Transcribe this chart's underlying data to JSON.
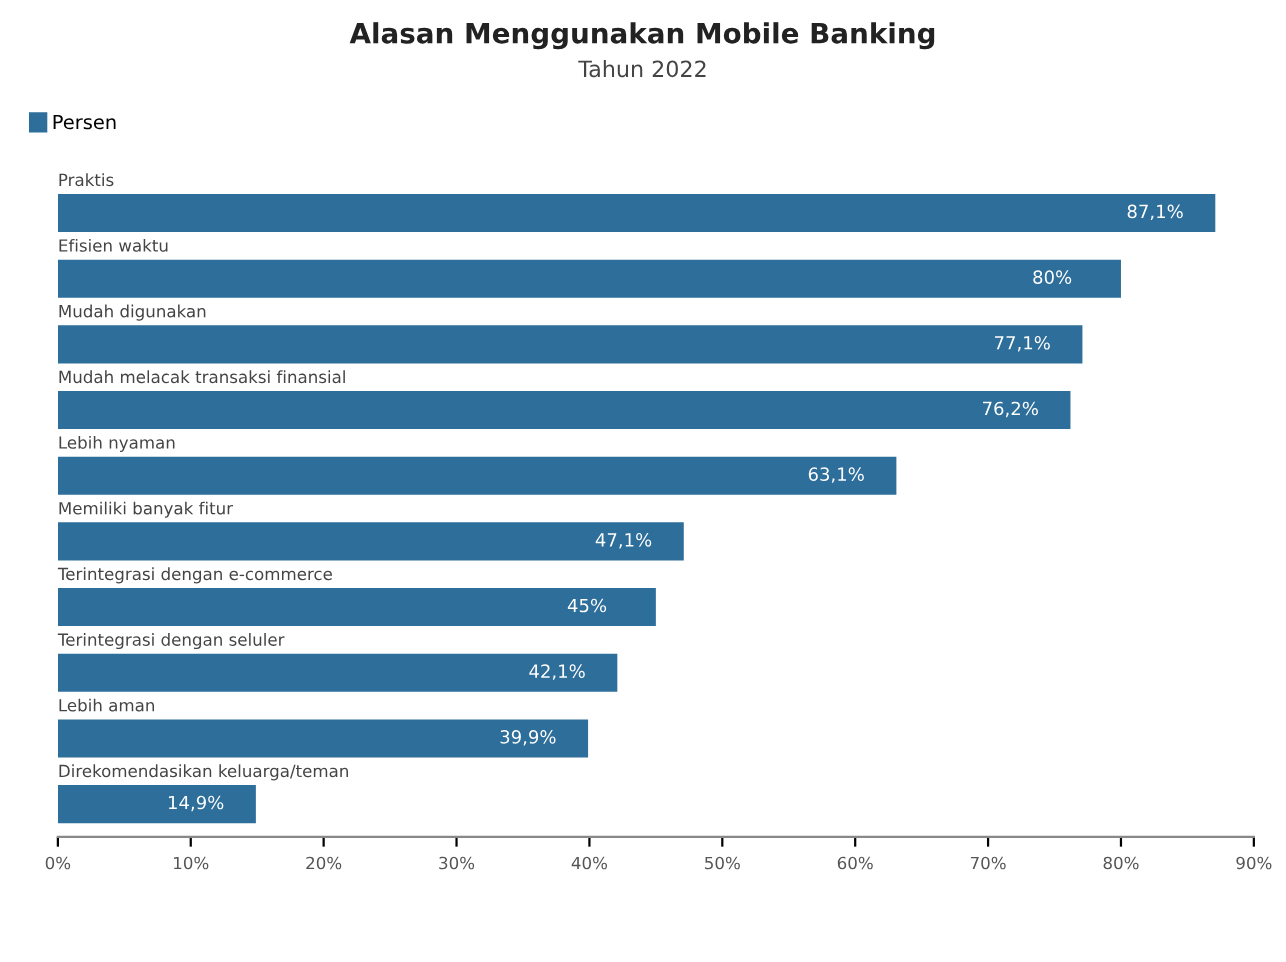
{
  "chart_data": {
    "type": "bar",
    "orientation": "horizontal",
    "title": "Alasan Menggunakan Mobile Banking",
    "subtitle": "Tahun 2022",
    "categories": [
      "Praktis",
      "Efisien waktu",
      "Mudah digunakan",
      "Mudah melacak transaksi finansial",
      "Lebih nyaman",
      "Memiliki banyak fitur",
      "Terintegrasi dengan e-commerce",
      "Terintegrasi dengan seluler",
      "Lebih aman",
      "Direkomendasikan keluarga/teman"
    ],
    "series": [
      {
        "name": "Persen",
        "color": "#2e6e9a",
        "values": [
          87.1,
          80.0,
          77.1,
          76.2,
          63.1,
          47.1,
          45.0,
          42.1,
          39.9,
          14.9
        ],
        "value_labels": [
          "87,1%",
          "80%",
          "77,1%",
          "76,2%",
          "63,1%",
          "47,1%",
          "45%",
          "42,1%",
          "39,9%",
          "14,9%"
        ]
      }
    ],
    "xlim": [
      0,
      90
    ],
    "xticks": [
      {
        "value": 0,
        "label": "0%"
      },
      {
        "value": 10,
        "label": "10%"
      },
      {
        "value": 20,
        "label": "20%"
      },
      {
        "value": 30,
        "label": "30%"
      },
      {
        "value": 40,
        "label": "40%"
      },
      {
        "value": 50,
        "label": "50%"
      },
      {
        "value": 60,
        "label": "60%"
      },
      {
        "value": 70,
        "label": "70%"
      },
      {
        "value": 80,
        "label": "80%"
      },
      {
        "value": 90,
        "label": "90%"
      }
    ],
    "grid": false,
    "legend": "top left"
  }
}
